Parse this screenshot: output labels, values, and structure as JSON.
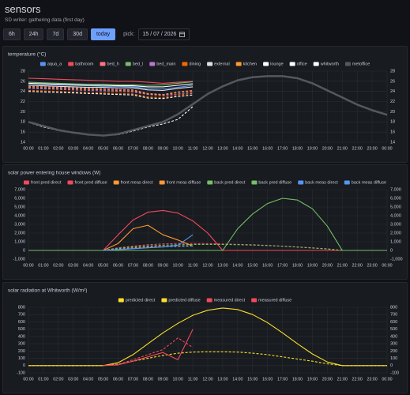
{
  "header": {
    "title": "sensors",
    "status": "SD writer: gathering data (first day)"
  },
  "controls": {
    "ranges": [
      "6h",
      "24h",
      "7d",
      "30d",
      "today"
    ],
    "active": "today",
    "pick_label": "pick:",
    "date": "15 / 07 / 2026"
  },
  "chart_data": [
    {
      "type": "line",
      "title": "temperature (°C)",
      "grid": true,
      "legend": "top",
      "categories": [
        "00:00",
        "01:00",
        "02:00",
        "03:00",
        "04:00",
        "05:00",
        "06:00",
        "07:00",
        "08:00",
        "09:00",
        "10:00",
        "11:00",
        "12:00",
        "13:00",
        "14:00",
        "15:00",
        "16:00",
        "17:00",
        "18:00",
        "19:00",
        "20:00",
        "21:00",
        "22:00",
        "23:00",
        "00:00"
      ],
      "ylim": [
        14,
        28
      ],
      "yticks": [
        14,
        16,
        18,
        20,
        22,
        24,
        26,
        28
      ],
      "series": [
        {
          "name": "aqua_a",
          "color": "#5794f2",
          "dashed": false,
          "values": [
            25.5,
            25.4,
            25.3,
            25.2,
            25.1,
            25.0,
            25.0,
            24.9,
            24.6,
            24.5,
            24.8,
            25.2,
            null,
            null,
            null,
            null,
            null,
            null,
            null,
            null,
            null,
            null,
            null,
            null,
            null
          ]
        },
        {
          "name": "bathroom",
          "color": "#f2495c",
          "dashed": false,
          "values": [
            26.6,
            26.5,
            26.4,
            26.3,
            26.2,
            26.1,
            26.0,
            26.0,
            25.8,
            25.6,
            25.8,
            26.0,
            null,
            null,
            null,
            null,
            null,
            null,
            null,
            null,
            null,
            null,
            null,
            null,
            null
          ]
        },
        {
          "name": "bed_h",
          "color": "#ff7383",
          "dashed": true,
          "values": [
            25.0,
            24.9,
            24.8,
            24.7,
            24.6,
            24.5,
            24.4,
            24.3,
            23.6,
            23.4,
            23.9,
            24.2,
            null,
            null,
            null,
            null,
            null,
            null,
            null,
            null,
            null,
            null,
            null,
            null,
            null
          ]
        },
        {
          "name": "bed_l",
          "color": "#73bf69",
          "dashed": false,
          "values": [
            25.8,
            25.7,
            25.6,
            25.5,
            25.4,
            25.4,
            25.3,
            25.3,
            25.2,
            25.3,
            25.6,
            25.9,
            null,
            null,
            null,
            null,
            null,
            null,
            null,
            null,
            null,
            null,
            null,
            null,
            null
          ]
        },
        {
          "name": "bed_main",
          "color": "#b877d9",
          "dashed": true,
          "values": [
            24.6,
            24.5,
            24.4,
            24.3,
            24.2,
            24.1,
            24.0,
            23.9,
            23.4,
            23.2,
            23.5,
            23.8,
            null,
            null,
            null,
            null,
            null,
            null,
            null,
            null,
            null,
            null,
            null,
            null,
            null
          ]
        },
        {
          "name": "dining",
          "color": "#fa6400",
          "dashed": true,
          "values": [
            24.2,
            24.1,
            24.0,
            23.9,
            23.8,
            23.7,
            23.6,
            23.5,
            22.9,
            22.8,
            23.3,
            23.6,
            null,
            null,
            null,
            null,
            null,
            null,
            null,
            null,
            null,
            null,
            null,
            null,
            null
          ]
        },
        {
          "name": "external",
          "color": "#e0e0e0",
          "dashed": false,
          "values": [
            25.2,
            25.1,
            25.0,
            24.9,
            24.8,
            24.8,
            24.7,
            24.7,
            24.3,
            24.2,
            24.6,
            24.9,
            null,
            null,
            null,
            null,
            null,
            null,
            null,
            null,
            null,
            null,
            null,
            null,
            null
          ]
        },
        {
          "name": "kitchen",
          "color": "#ff9830",
          "dashed": true,
          "values": [
            24.8,
            24.7,
            24.6,
            24.5,
            24.4,
            24.3,
            24.2,
            24.1,
            23.5,
            23.3,
            23.8,
            24.1,
            null,
            null,
            null,
            null,
            null,
            null,
            null,
            null,
            null,
            null,
            null,
            null,
            null
          ]
        },
        {
          "name": "lounge",
          "color": "#ffffff",
          "dashed": true,
          "values": [
            24.0,
            23.9,
            23.8,
            23.7,
            23.6,
            23.5,
            23.4,
            23.3,
            22.7,
            22.6,
            23.0,
            23.3,
            null,
            null,
            null,
            null,
            null,
            null,
            null,
            null,
            null,
            null,
            null,
            null,
            null
          ]
        },
        {
          "name": "office",
          "color": "#ffffff",
          "dashed": false,
          "values": [
            25.6,
            25.5,
            25.4,
            25.3,
            25.2,
            25.2,
            25.1,
            25.1,
            24.9,
            24.9,
            25.2,
            25.5,
            null,
            null,
            null,
            null,
            null,
            null,
            null,
            null,
            null,
            null,
            null,
            null,
            null
          ]
        },
        {
          "name": "whitworth",
          "color": "#ffffff",
          "dashed": true,
          "values": [
            17.9,
            17.0,
            16.3,
            15.8,
            15.5,
            15.3,
            15.5,
            16.2,
            17.0,
            17.6,
            18.5,
            21.0,
            null,
            null,
            null,
            null,
            null,
            null,
            null,
            null,
            null,
            null,
            null,
            null,
            null
          ]
        },
        {
          "name": "metoffice",
          "color": "#55585e",
          "dashed": false,
          "width": 2.5,
          "values": [
            18.0,
            17.2,
            16.4,
            15.9,
            15.5,
            15.3,
            15.6,
            16.4,
            17.2,
            18.0,
            19.5,
            21.5,
            23.5,
            25.0,
            26.2,
            26.8,
            27.0,
            27.0,
            26.6,
            25.6,
            24.2,
            22.8,
            21.4,
            20.3,
            19.4
          ]
        }
      ]
    },
    {
      "type": "line",
      "title": "solar power entering house windows (W)",
      "grid": true,
      "legend": "top",
      "categories": [
        "00:00",
        "01:00",
        "02:00",
        "03:00",
        "04:00",
        "05:00",
        "06:00",
        "07:00",
        "08:00",
        "09:00",
        "10:00",
        "11:00",
        "12:00",
        "13:00",
        "14:00",
        "15:00",
        "16:00",
        "17:00",
        "18:00",
        "19:00",
        "20:00",
        "21:00",
        "22:00",
        "23:00",
        "00:00"
      ],
      "ylim": [
        -1000,
        7000
      ],
      "yticks": [
        {
          "value": -1000,
          "label": "-1,000"
        },
        0,
        {
          "value": 1000,
          "label": "1,000"
        },
        {
          "value": 2000,
          "label": "2,000"
        },
        {
          "value": 3000,
          "label": "3,000"
        },
        {
          "value": 4000,
          "label": "4,000"
        },
        {
          "value": 5000,
          "label": "5,000"
        },
        {
          "value": 6000,
          "label": "6,000"
        },
        {
          "value": 7000,
          "label": "7,000"
        }
      ],
      "series": [
        {
          "name": "front pred direct",
          "color": "#f2495c",
          "dashed": false,
          "values": [
            0,
            0,
            0,
            0,
            0,
            0,
            1800,
            3500,
            4400,
            4600,
            4300,
            3400,
            2000,
            0,
            0,
            0,
            0,
            0,
            0,
            0,
            0,
            0,
            0,
            0,
            0
          ]
        },
        {
          "name": "front pred diffuse",
          "color": "#f2495c",
          "dashed": true,
          "values": [
            0,
            0,
            0,
            0,
            0,
            0,
            300,
            500,
            650,
            750,
            800,
            800,
            780,
            750,
            700,
            650,
            580,
            500,
            400,
            300,
            180,
            0,
            0,
            0,
            0
          ]
        },
        {
          "name": "front meas direct",
          "color": "#ff9830",
          "dashed": false,
          "values": [
            null,
            null,
            null,
            null,
            null,
            0,
            800,
            2500,
            2900,
            1800,
            1200,
            500,
            null,
            null,
            null,
            null,
            null,
            null,
            null,
            null,
            null,
            null,
            null,
            null,
            null
          ]
        },
        {
          "name": "front meas diffuse",
          "color": "#ff9830",
          "dashed": true,
          "values": [
            null,
            null,
            null,
            null,
            null,
            0,
            150,
            300,
            400,
            450,
            500,
            550,
            null,
            null,
            null,
            null,
            null,
            null,
            null,
            null,
            null,
            null,
            null,
            null,
            null
          ]
        },
        {
          "name": "back pred direct",
          "color": "#73bf69",
          "dashed": false,
          "values": [
            0,
            0,
            0,
            0,
            0,
            0,
            0,
            0,
            0,
            0,
            0,
            0,
            0,
            0,
            2500,
            4200,
            5400,
            6000,
            5800,
            4800,
            2800,
            0,
            0,
            0,
            0
          ]
        },
        {
          "name": "back pred diffuse",
          "color": "#73bf69",
          "dashed": true,
          "values": [
            0,
            0,
            0,
            0,
            0,
            0,
            250,
            400,
            520,
            600,
            650,
            680,
            690,
            680,
            660,
            620,
            560,
            480,
            380,
            280,
            160,
            0,
            0,
            0,
            0
          ]
        },
        {
          "name": "back meas direct",
          "color": "#5794f2",
          "dashed": false,
          "values": [
            null,
            null,
            null,
            null,
            null,
            0,
            100,
            200,
            300,
            400,
            600,
            1800,
            null,
            null,
            null,
            null,
            null,
            null,
            null,
            null,
            null,
            null,
            null,
            null,
            null
          ]
        },
        {
          "name": "back meas diffuse",
          "color": "#5794f2",
          "dashed": true,
          "values": [
            null,
            null,
            null,
            null,
            null,
            0,
            120,
            250,
            330,
            400,
            450,
            500,
            null,
            null,
            null,
            null,
            null,
            null,
            null,
            null,
            null,
            null,
            null,
            null,
            null
          ]
        }
      ]
    },
    {
      "type": "line",
      "title": "solar radiation at Whitworth (W/m²)",
      "grid": true,
      "legend": "top",
      "categories": [
        "00:00",
        "01:00",
        "02:00",
        "03:00",
        "04:00",
        "05:00",
        "06:00",
        "07:00",
        "08:00",
        "09:00",
        "10:00",
        "11:00",
        "12:00",
        "13:00",
        "14:00",
        "15:00",
        "16:00",
        "17:00",
        "18:00",
        "19:00",
        "20:00",
        "21:00",
        "22:00",
        "23:00",
        "00:00"
      ],
      "ylim": [
        -100,
        800
      ],
      "yticks": [
        -100,
        0,
        100,
        200,
        300,
        400,
        500,
        600,
        700,
        800
      ],
      "series": [
        {
          "name": "predicted direct",
          "color": "#fade2a",
          "dashed": false,
          "values": [
            0,
            0,
            0,
            0,
            0,
            0,
            40,
            150,
            300,
            450,
            580,
            690,
            760,
            790,
            770,
            700,
            590,
            450,
            300,
            160,
            50,
            0,
            0,
            0,
            0
          ]
        },
        {
          "name": "predicted diffuse",
          "color": "#fade2a",
          "dashed": true,
          "values": [
            0,
            0,
            0,
            0,
            0,
            0,
            20,
            60,
            100,
            140,
            170,
            185,
            190,
            190,
            185,
            170,
            150,
            120,
            90,
            60,
            25,
            0,
            0,
            0,
            0
          ]
        },
        {
          "name": "measured direct",
          "color": "#f2495c",
          "dashed": false,
          "values": [
            null,
            null,
            null,
            null,
            null,
            0,
            10,
            60,
            120,
            180,
            80,
            500,
            null,
            null,
            null,
            null,
            null,
            null,
            null,
            null,
            null,
            null,
            null,
            null,
            null
          ]
        },
        {
          "name": "measured diffuse",
          "color": "#f2495c",
          "dashed": true,
          "values": [
            null,
            null,
            null,
            null,
            null,
            0,
            15,
            80,
            150,
            220,
            380,
            250,
            null,
            null,
            null,
            null,
            null,
            null,
            null,
            null,
            null,
            null,
            null,
            null,
            null
          ]
        }
      ]
    }
  ]
}
